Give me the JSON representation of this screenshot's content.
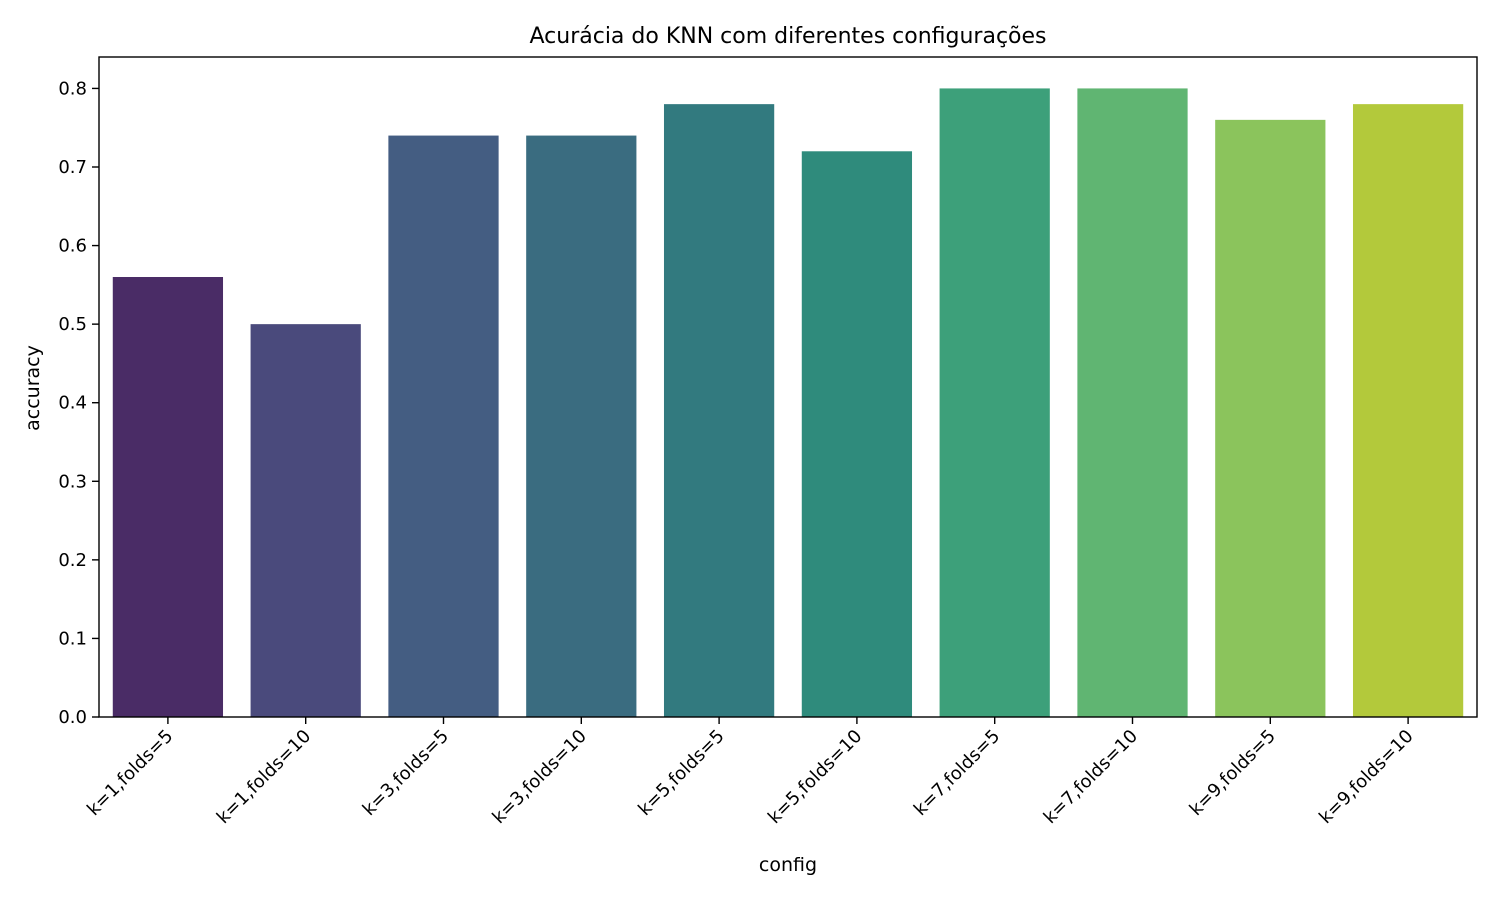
{
  "chart_data": {
    "type": "bar",
    "title": "Acurácia do KNN com diferentes configurações",
    "xlabel": "config",
    "ylabel": "accuracy",
    "categories": [
      "k=1,folds=5",
      "k=1,folds=10",
      "k=3,folds=5",
      "k=3,folds=10",
      "k=5,folds=5",
      "k=5,folds=10",
      "k=7,folds=5",
      "k=7,folds=10",
      "k=9,folds=5",
      "k=9,folds=10"
    ],
    "values": [
      0.56,
      0.5,
      0.74,
      0.74,
      0.78,
      0.72,
      0.8,
      0.8,
      0.76,
      0.78
    ],
    "colors": [
      "#4a2c66",
      "#4a4a7c",
      "#445d82",
      "#3a6c80",
      "#327a7f",
      "#2f8b7c",
      "#3da07a",
      "#60b572",
      "#8bc45c",
      "#b3c93b"
    ],
    "ylim": [
      0,
      0.84
    ],
    "yticks": [
      "0.0",
      "0.1",
      "0.2",
      "0.3",
      "0.4",
      "0.5",
      "0.6",
      "0.7",
      "0.8"
    ],
    "grid": false,
    "legend": "none"
  }
}
